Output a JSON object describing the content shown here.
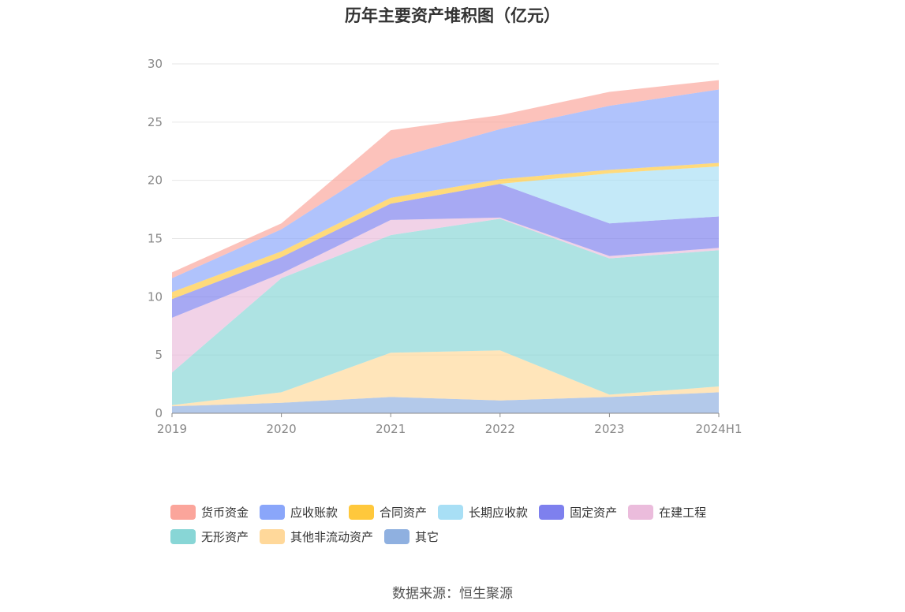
{
  "chart_data": {
    "type": "area",
    "stacked": true,
    "title": "历年主要资产堆积图（亿元）",
    "categories": [
      "2019",
      "2020",
      "2021",
      "2022",
      "2023",
      "2024H1"
    ],
    "y_ticks": [
      "0",
      "5",
      "10",
      "15",
      "20",
      "25",
      "30"
    ],
    "ylim": [
      0,
      30
    ],
    "grid": true,
    "legend_position": "bottom",
    "series": [
      {
        "name": "其它",
        "color": "#8fb0e0",
        "values": [
          0.6,
          0.9,
          1.4,
          1.1,
          1.4,
          1.8
        ]
      },
      {
        "name": "其他非流动资产",
        "color": "#ffd89a",
        "values": [
          0.1,
          0.9,
          3.8,
          4.3,
          0.2,
          0.5
        ]
      },
      {
        "name": "无形资产",
        "color": "#88d6d6",
        "values": [
          2.8,
          9.8,
          10.1,
          11.3,
          11.7,
          11.7
        ]
      },
      {
        "name": "在建工程",
        "color": "#ebbcdc",
        "values": [
          4.7,
          0.4,
          1.3,
          0.1,
          0.2,
          0.2
        ]
      },
      {
        "name": "固定资产",
        "color": "#7e80ee",
        "values": [
          1.6,
          1.4,
          1.4,
          2.9,
          2.8,
          2.7
        ]
      },
      {
        "name": "长期应收款",
        "color": "#a8dff5",
        "values": [
          0.0,
          0.0,
          0.0,
          0.0,
          4.3,
          4.3
        ]
      },
      {
        "name": "合同资产",
        "color": "#ffc83c",
        "values": [
          0.6,
          0.5,
          0.5,
          0.4,
          0.3,
          0.3
        ]
      },
      {
        "name": "应收账款",
        "color": "#8aa6fa",
        "values": [
          1.2,
          1.9,
          3.3,
          4.3,
          5.5,
          6.3
        ]
      },
      {
        "name": "货币资金",
        "color": "#fba59b",
        "values": [
          0.5,
          0.5,
          2.5,
          1.2,
          1.2,
          0.8
        ]
      }
    ]
  },
  "legend_order": [
    "货币资金",
    "应收账款",
    "合同资产",
    "长期应收款",
    "固定资产",
    "在建工程",
    "无形资产",
    "其他非流动资产",
    "其它"
  ],
  "source": "数据来源：恒生聚源"
}
